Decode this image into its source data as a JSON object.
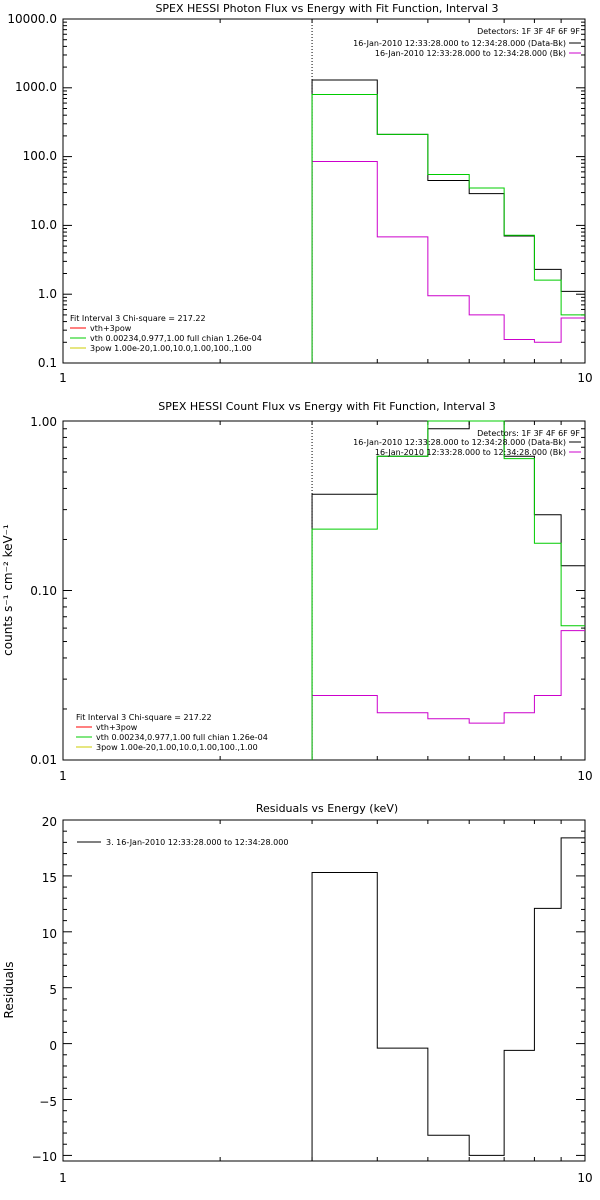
{
  "colors": {
    "data_bk": "#000000",
    "bk": "#cc00cc",
    "fit_total": "#ff0000",
    "vth": "#00cc00",
    "3pow": "#cccc00",
    "background": "#ffffff"
  },
  "chart_data": [
    {
      "type": "line",
      "title": "SPEX HESSI Photon Flux vs Energy with Fit Function, Interval 3",
      "xlabel": "",
      "ylabel": "",
      "xscale": "log",
      "yscale": "log",
      "xlim": [
        1,
        10
      ],
      "ylim": [
        0.1,
        10000.0
      ],
      "xticks": [
        "1",
        "10"
      ],
      "yticks": [
        "0.1",
        "1.0",
        "10.0",
        "100.0",
        "1000.0",
        "10000.0"
      ],
      "marker_line_x": 3.0,
      "header_lines": [
        "Detectors: 1F 3F 4F 6F 9F",
        "16-Jan-2010 12:33:28.000 to 12:34:28.000 (Data-Bk)",
        "16-Jan-2010 12:33:28.000 to 12:34:28.000 (Bk)"
      ],
      "fit_legend_title": "Fit Interval 3    Chi-square = 217.22",
      "fit_legend_items": [
        {
          "label": "vth+3pow",
          "color_key": "fit_total"
        },
        {
          "label": "vth 0.00234,0.977,1.00  full chian 1.26e-04",
          "color_key": "vth"
        },
        {
          "label": "3pow 1.00e-20,1.00,10.0,1.00,100.,1.00",
          "color_key": "3pow"
        }
      ],
      "bin_edges": [
        3.0,
        4.0,
        5.0,
        6.0,
        7.0,
        8.0,
        9.0,
        10.0
      ],
      "series": [
        {
          "name": "16-Jan-2010 12:33:28.000 to 12:34:28.000 (Data-Bk)",
          "color_key": "data_bk",
          "values": [
            1300,
            210,
            45,
            29,
            7,
            2.3,
            1.1
          ]
        },
        {
          "name": "16-Jan-2010 12:33:28.000 to 12:34:28.000 (Bk)",
          "color_key": "bk",
          "values": [
            85,
            6.8,
            0.95,
            0.5,
            0.22,
            0.2,
            0.45
          ]
        },
        {
          "name": "vth 0.00234,0.977,1.00  full chian 1.26e-04",
          "color_key": "vth",
          "values": [
            800,
            210,
            55,
            35,
            7.2,
            1.6,
            0.5
          ]
        }
      ]
    },
    {
      "type": "line",
      "title": "SPEX HESSI Count Flux vs Energy with Fit Function, Interval 3",
      "xlabel": "",
      "ylabel": "counts s⁻¹ cm⁻² keV⁻¹",
      "xscale": "log",
      "yscale": "log",
      "xlim": [
        1,
        10
      ],
      "ylim": [
        0.01,
        1.0
      ],
      "xticks": [
        "1",
        "10"
      ],
      "yticks": [
        "0.01",
        "0.10",
        "1.00"
      ],
      "marker_line_x": 3.0,
      "header_lines": [
        "Detectors: 1F 3F 4F 6F 9F",
        "16-Jan-2010 12:33:28.000 to 12:34:28.000 (Data-Bk)",
        "16-Jan-2010 12:33:28.000 to 12:34:28.000 (Bk)"
      ],
      "fit_legend_title": "Fit Interval 3    Chi-square = 217.22",
      "fit_legend_items": [
        {
          "label": "vth+3pow",
          "color_key": "fit_total"
        },
        {
          "label": "vth 0.00234,0.977,1.00  full chian 1.26e-04",
          "color_key": "vth"
        },
        {
          "label": "3pow 1.00e-20,1.00,10.0,1.00,100.,1.00",
          "color_key": "3pow"
        }
      ],
      "bin_edges": [
        3.0,
        4.0,
        5.0,
        6.0,
        7.0,
        8.0,
        9.0,
        10.0
      ],
      "series": [
        {
          "name": "16-Jan-2010 12:33:28.000 to 12:34:28.000 (Data-Bk)",
          "color_key": "data_bk",
          "values": [
            0.37,
            0.62,
            0.9,
            1.0,
            0.62,
            0.28,
            0.14
          ]
        },
        {
          "name": "16-Jan-2010 12:33:28.000 to 12:34:28.000 (Bk)",
          "color_key": "bk",
          "values": [
            0.024,
            0.019,
            0.0175,
            0.0165,
            0.019,
            0.024,
            0.058
          ]
        },
        {
          "name": "vth 0.00234,0.977,1.00  full chian 1.26e-04",
          "color_key": "vth",
          "values": [
            0.23,
            0.62,
            1.1,
            1.0,
            0.6,
            0.19,
            0.062
          ]
        }
      ]
    },
    {
      "type": "line",
      "title": "Residuals vs Energy (keV)",
      "xlabel": "",
      "ylabel": "Residuals",
      "xscale": "log",
      "yscale": "linear",
      "xlim": [
        1,
        10
      ],
      "ylim": [
        -10.5,
        20
      ],
      "xticks": [
        "1",
        "10"
      ],
      "yticks": [
        "−10",
        "−5",
        "0",
        "5",
        "10",
        "15",
        "20"
      ],
      "legend_label": "3. 16-Jan-2010 12:33:28.000 to 12:34:28.000",
      "bin_edges": [
        3.0,
        4.0,
        5.0,
        6.0,
        7.0,
        8.0,
        9.0,
        10.0
      ],
      "series": [
        {
          "name": "3. 16-Jan-2010 12:33:28.000 to 12:34:28.000",
          "color_key": "data_bk",
          "values": [
            15.3,
            -0.4,
            -8.2,
            -10.0,
            -0.6,
            12.1,
            18.4
          ]
        }
      ]
    }
  ]
}
